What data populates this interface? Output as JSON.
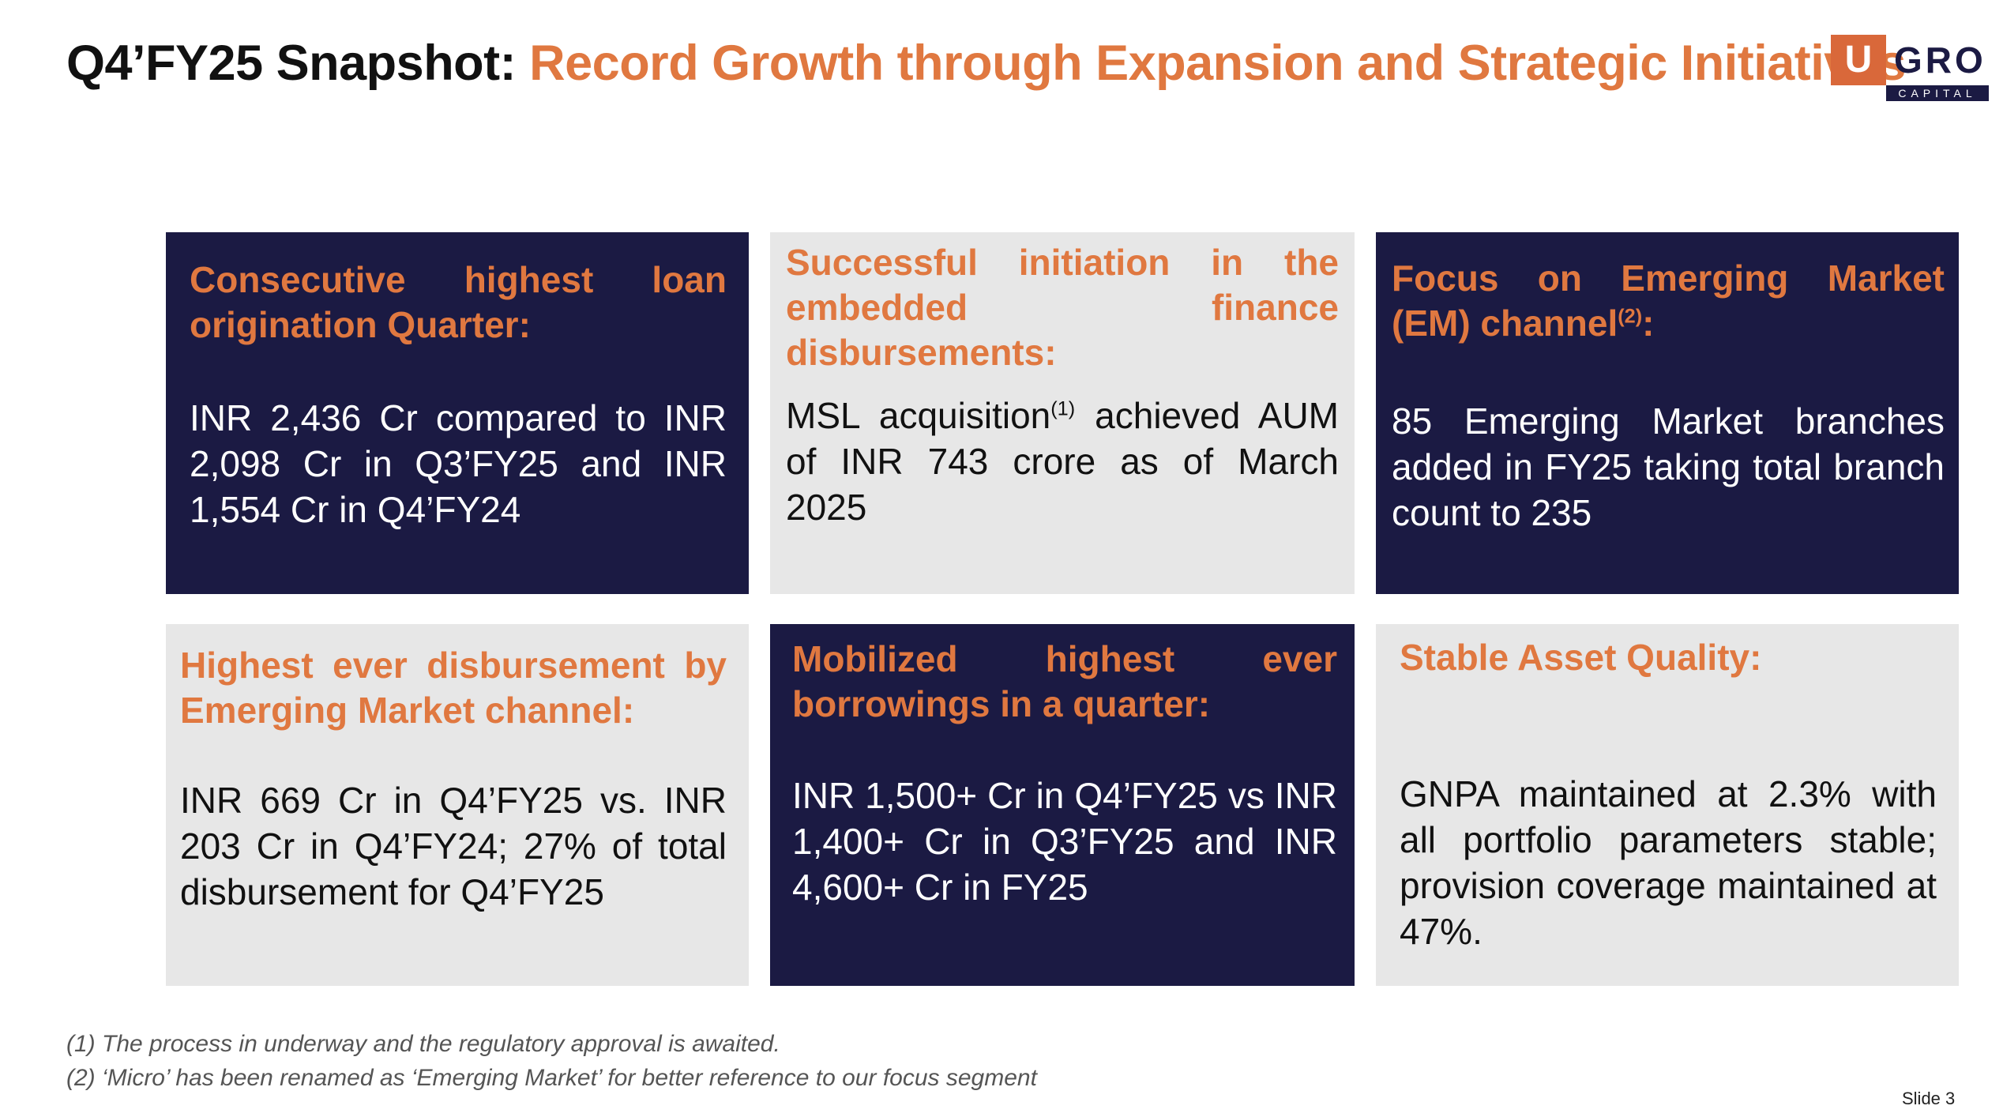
{
  "title": {
    "part1": "Q4’FY25 Snapshot:",
    "part2": " Record Growth through Expansion and Strategic Initiatives"
  },
  "logo": {
    "mark": "U",
    "name": "GRO",
    "sub": "CAPITAL"
  },
  "cards": [
    {
      "heading": "Consecutive highest loan origination Quarter:",
      "body": "INR 2,436 Cr compared to INR 2,098 Cr in Q3’FY25 and INR 1,554 Cr in Q4’FY24"
    },
    {
      "heading": "Successful initiation in the embedded finance disbursements:",
      "body_pre": "MSL acquisition",
      "body_sup": "(1)",
      "body_post": " achieved AUM of INR 743 crore as of March 2025"
    },
    {
      "heading_pre": "Focus on Emerging Market (EM) channel",
      "heading_sup": "(2)",
      "heading_post": ":",
      "body": "85 Emerging Market branches added in FY25 taking total branch count to 235"
    },
    {
      "heading": "Highest ever disbursement by Emerging Market channel:",
      "body": "INR 669 Cr in Q4’FY25 vs. INR 203 Cr in Q4’FY24; 27% of total disbursement for Q4’FY25"
    },
    {
      "heading": "Mobilized highest ever borrowings in a quarter:",
      "body": "INR 1,500+ Cr in Q4’FY25 vs INR 1,400+ Cr in Q3’FY25 and INR 4,600+ Cr in FY25"
    },
    {
      "heading": "Stable Asset Quality:",
      "body": "GNPA maintained at 2.3% with all portfolio parameters stable; provision coverage maintained at 47%."
    }
  ],
  "footnotes": [
    "(1)  The process in underway and the regulatory approval is awaited.",
    "(2)  ‘Micro’ has been renamed as ‘Emerging Market’ for better reference to our focus segment"
  ],
  "slide_number": "Slide 3",
  "colors": {
    "navy": "#1B1A43",
    "orange": "#E07840",
    "light_gray": "#E7E7E7"
  }
}
